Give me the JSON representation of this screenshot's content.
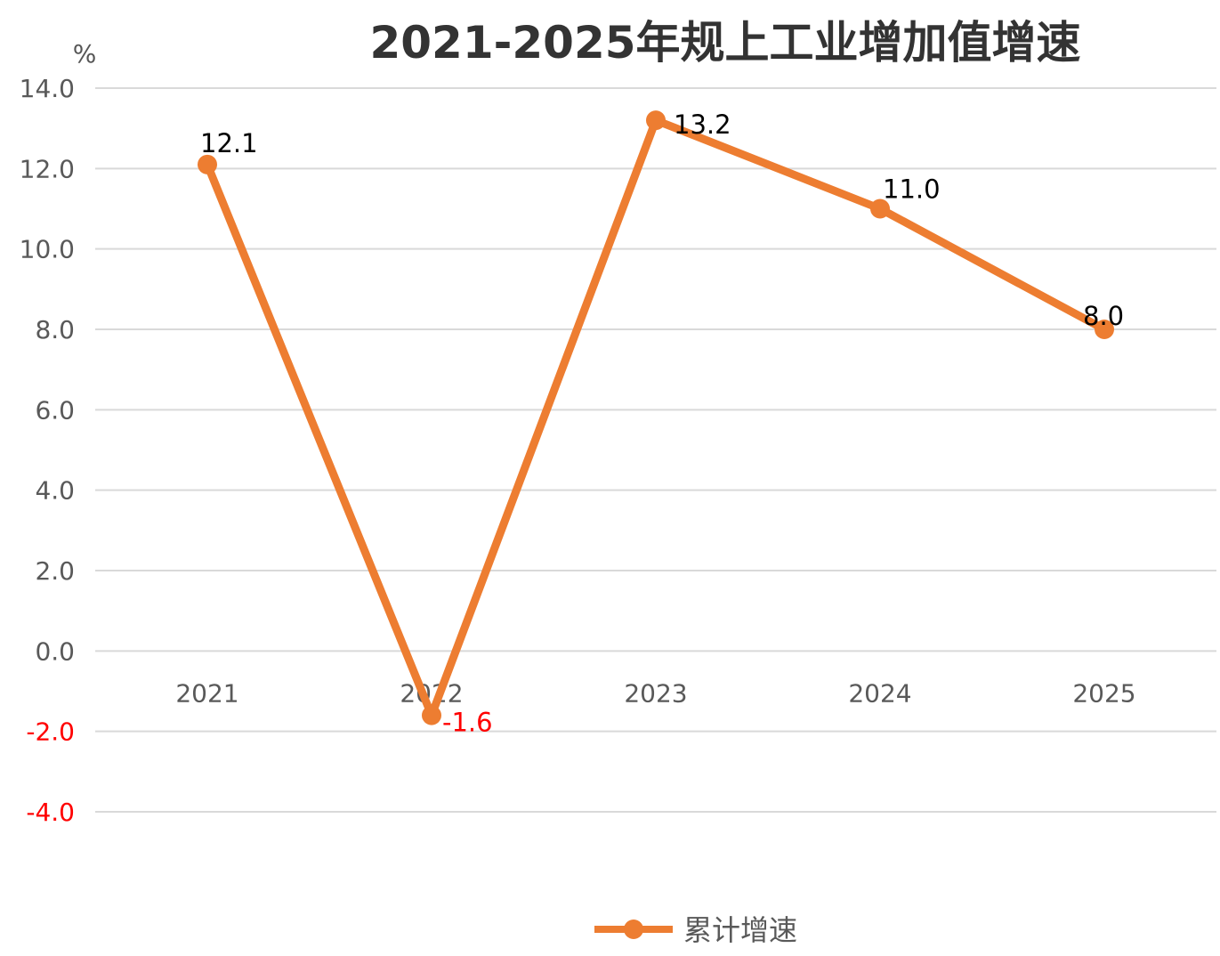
{
  "chart_data": {
    "type": "line",
    "title": "2021-2025年规上工业增加值增速",
    "unit_label": "%",
    "categories": [
      "2021",
      "2022",
      "2023",
      "2024",
      "2025"
    ],
    "series": [
      {
        "name": "累计增速",
        "values": [
          12.1,
          -1.6,
          13.2,
          11.0,
          8.0
        ]
      }
    ],
    "data_labels": [
      "12.1",
      "-1.6",
      "13.2",
      "11.0",
      "8.0"
    ],
    "ylim": [
      -4.0,
      14.0
    ],
    "yticks": [
      "14.0",
      "12.0",
      "10.0",
      "8.0",
      "6.0",
      "4.0",
      "2.0",
      "0.0",
      "-2.0",
      "-4.0"
    ],
    "grid": true,
    "legend_position": "bottom-center",
    "colors": {
      "series": "#ed7d31",
      "negative": "#ff0000",
      "grid": "#d9d9d9"
    }
  }
}
